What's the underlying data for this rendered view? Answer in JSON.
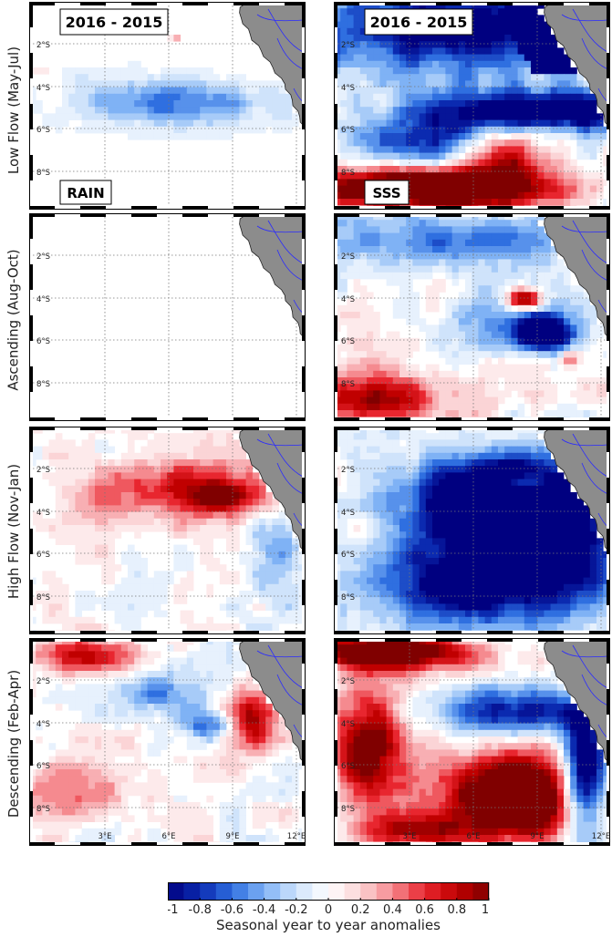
{
  "panel_labels": {
    "years": "2016 - 2015",
    "rain": "RAIN",
    "sss": "SSS"
  },
  "rows": [
    {
      "label": "Low Flow (May-Jul)"
    },
    {
      "label": "Ascending (Aug-Oct)"
    },
    {
      "label": "High Flow (Nov-Jan)"
    },
    {
      "label": "Descending (Feb-Apr)"
    }
  ],
  "lat_ticks": [
    "2°S",
    "4°S",
    "6°S",
    "8°S"
  ],
  "lon_ticks": [
    "3°E",
    "6°E",
    "9°E",
    "12°E"
  ],
  "colorbar": {
    "title": "Seasonal year to year anomalies",
    "tick_labels": [
      "-1",
      "-0.8",
      "-0.6",
      "-0.4",
      "-0.2",
      "0",
      "0.2",
      "0.4",
      "0.6",
      "0.8",
      "1"
    ],
    "range": [
      -1,
      1
    ],
    "steps": 20
  },
  "colors": {
    "land": "#8c8c8c",
    "river": "#2a2aff",
    "neg_max": "#000080",
    "pos_max": "#800000",
    "neutral": "#ffffff"
  },
  "map_extent": {
    "lon": [
      0,
      13
    ],
    "lat": [
      -10,
      0
    ]
  }
}
